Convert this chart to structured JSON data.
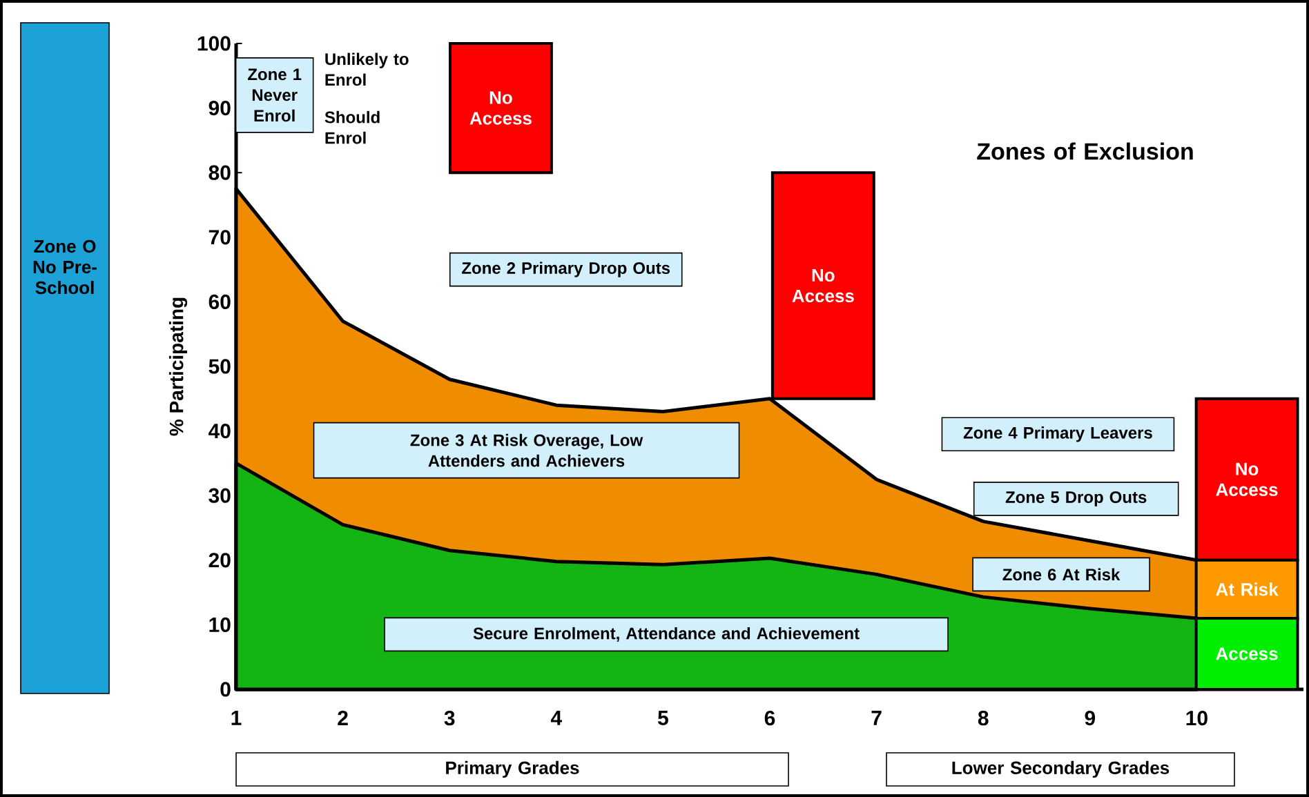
{
  "chart_data": {
    "type": "area",
    "title": "Zones of Exclusion",
    "ylabel": "% Participating",
    "x": [
      1,
      2,
      3,
      4,
      5,
      6,
      7,
      8,
      9,
      10
    ],
    "series": [
      {
        "color": "#14b414",
        "values": [
          35,
          25.5,
          21.5,
          19.8,
          19.3,
          20.3,
          17.8,
          14.3,
          12.5,
          11
        ]
      },
      {
        "color": "#f08c00",
        "values": [
          77.5,
          57,
          48,
          44,
          43,
          45,
          32.5,
          26,
          23,
          20
        ]
      },
      {
        "type": "bar",
        "name": "No Access",
        "color": "#ff0000",
        "x": [
          3.48,
          6.5,
          10.47
        ],
        "base": [
          80,
          45,
          20
        ],
        "values": [
          20,
          35,
          25
        ]
      },
      {
        "type": "bar",
        "name": "At Risk",
        "color": "#ff9900",
        "x": [
          10.47
        ],
        "base": [
          11
        ],
        "values": [
          9
        ]
      },
      {
        "type": "bar",
        "name": "Access",
        "color": "#00ee00",
        "x": [
          10.47
        ],
        "base": [
          0
        ],
        "values": [
          11
        ]
      }
    ],
    "xlim": [
      1,
      11
    ],
    "ylim": [
      0,
      100
    ],
    "xticks": [
      1,
      2,
      3,
      4,
      5,
      6,
      7,
      8,
      9,
      10
    ],
    "yticks": [
      0,
      10,
      20,
      30,
      40,
      50,
      60,
      70,
      80,
      90,
      100
    ],
    "annotations": [
      "Zone 1 Never Enrol",
      "Unlikely to Enrol",
      "Should Enrol",
      "Zone 2 Primary Drop Outs",
      "Zone 3 At Risk Overage, Low Attenders and Achievers",
      "Zone 4 Primary Leavers",
      "Zone 5 Drop Outs",
      "Zone 6 At Risk",
      "Secure Enrolment, Attendance and Achievement",
      "Zone O No Pre-School",
      "Primary Grades",
      "Lower Secondary Grades"
    ]
  }
}
